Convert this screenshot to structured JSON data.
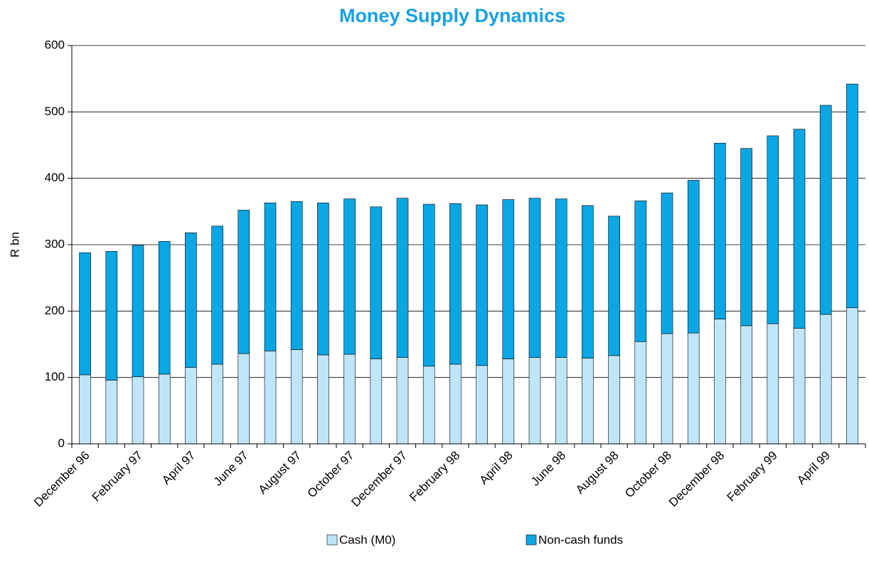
{
  "chart_data": {
    "type": "stacked_bar",
    "title": "Money Supply Dynamics",
    "y_label": "R bn",
    "categories": [
      "December 96",
      null,
      "February 97",
      null,
      "April 97",
      null,
      "June 97",
      null,
      "August 97",
      null,
      "October 97",
      null,
      "December 97",
      null,
      "February 98",
      null,
      "April 98",
      null,
      "June 98",
      null,
      "August 98",
      null,
      "October 98",
      null,
      "December 98",
      null,
      "February 99",
      null,
      "April 99",
      null
    ],
    "series": [
      {
        "name": "Cash (M0)",
        "color": "#bfe6f8",
        "values": [
          104,
          96,
          101,
          105,
          115,
          120,
          136,
          140,
          142,
          134,
          135,
          128,
          130,
          117,
          120,
          118,
          128,
          130,
          130,
          129,
          133,
          154,
          166,
          167,
          188,
          178,
          181,
          174,
          195,
          205
        ]
      },
      {
        "name": "Non-cash funds",
        "color": "#0aa7e4",
        "values": [
          184,
          194,
          198,
          200,
          203,
          208,
          216,
          223,
          223,
          229,
          234,
          229,
          240,
          244,
          242,
          242,
          240,
          240,
          239,
          230,
          210,
          212,
          212,
          230,
          265,
          267,
          283,
          300,
          315,
          337
        ]
      }
    ],
    "ylim": [
      0,
      600
    ],
    "yticks": [
      0,
      100,
      200,
      300,
      400,
      500,
      600
    ],
    "grid": true,
    "legend": "bottom"
  }
}
